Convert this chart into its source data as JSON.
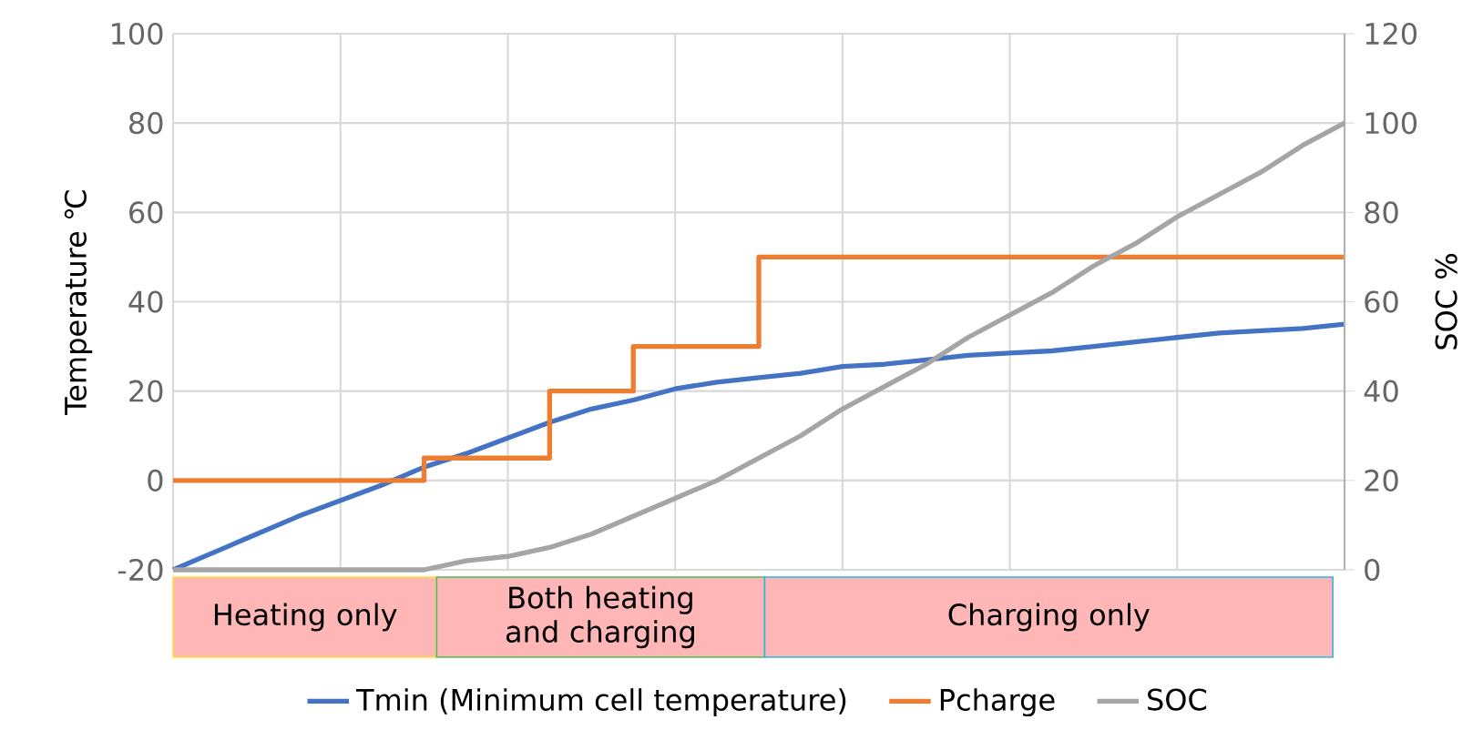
{
  "chart_data": {
    "type": "line",
    "ylabel": "Temperature ℃",
    "y2label": "SOC %",
    "categories": [
      null,
      null,
      null,
      null,
      null,
      null,
      null,
      null,
      null,
      null,
      null,
      null,
      null,
      null,
      null,
      null,
      null,
      null,
      null,
      null,
      null,
      null,
      null,
      null,
      null,
      null,
      null,
      null,
      null
    ],
    "ylim": [
      -20,
      100
    ],
    "yticks": [
      -20,
      0,
      20,
      40,
      60,
      80,
      100
    ],
    "y2lim": [
      0,
      120
    ],
    "y2ticks": [
      0,
      20,
      40,
      60,
      80,
      100,
      120
    ],
    "grid": true,
    "legend": "bottom",
    "tick_labels": "y",
    "annotations": [
      "Heating only",
      "Both heating and charging",
      "Charging only"
    ],
    "series": [
      {
        "name": "Tmin (Minimum cell temperature)",
        "type": "line",
        "color": "#4472c4",
        "values": [
          -20,
          -16,
          -12,
          -8,
          -4.5,
          -1,
          3,
          6,
          9.5,
          13,
          16,
          18,
          20.5,
          22,
          23,
          24,
          25.5,
          26,
          27,
          28,
          28.5,
          29,
          30,
          31,
          32,
          33,
          33.5,
          34,
          35
        ]
      },
      {
        "name": "Pcharge",
        "type": "step",
        "color": "#ed7d31",
        "values": [
          0,
          0,
          0,
          0,
          0,
          0,
          5,
          5,
          5,
          20,
          20,
          30,
          30,
          30,
          50,
          50,
          50,
          50,
          50,
          50,
          50,
          50,
          50,
          50,
          50,
          50,
          50,
          50,
          50
        ]
      },
      {
        "name": "SOC",
        "type": "line",
        "axis": "y2",
        "color": "#a5a5a5",
        "values": [
          0,
          0,
          0,
          0,
          0,
          0,
          0,
          2,
          3,
          5,
          8,
          12,
          16,
          20,
          25,
          30,
          36,
          41,
          46,
          52,
          57,
          62,
          68,
          73,
          79,
          84,
          89,
          95,
          100
        ]
      }
    ]
  }
}
